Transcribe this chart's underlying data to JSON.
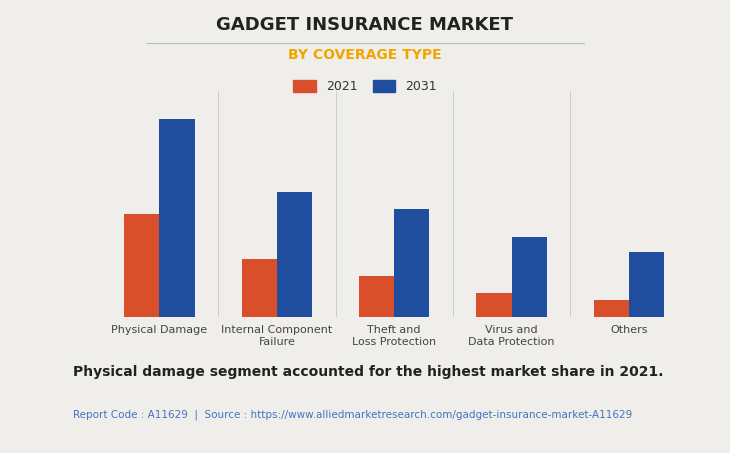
{
  "title": "GADGET INSURANCE MARKET",
  "subtitle": "BY COVERAGE TYPE",
  "subtitle_color": "#F0A500",
  "title_color": "#222222",
  "background_color": "#F0EEEA",
  "plot_background_color": "#F0EEEA",
  "categories": [
    "Physical Damage",
    "Internal Component\nFailure",
    "Theft and\nLoss Protection",
    "Virus and\nData Protection",
    "Others"
  ],
  "values_2021": [
    0.48,
    0.27,
    0.19,
    0.11,
    0.08
  ],
  "values_2031": [
    0.92,
    0.58,
    0.5,
    0.37,
    0.3
  ],
  "color_2021": "#D94F2B",
  "color_2031": "#1F4E9E",
  "legend_labels": [
    "2021",
    "2031"
  ],
  "bar_width": 0.3,
  "ylim": [
    0,
    1.05
  ],
  "grid_color": "#CCCCCC",
  "footnote": "Physical damage segment accounted for the highest market share in 2021.",
  "source_text": "Report Code : A11629  |  Source : https://www.alliedmarketresearch.com/gadget-insurance-market-A11629",
  "source_color": "#4472C4",
  "footnote_color": "#222222",
  "title_fontsize": 13,
  "subtitle_fontsize": 10,
  "legend_fontsize": 9,
  "tick_fontsize": 8,
  "footnote_fontsize": 10,
  "source_fontsize": 7.5
}
